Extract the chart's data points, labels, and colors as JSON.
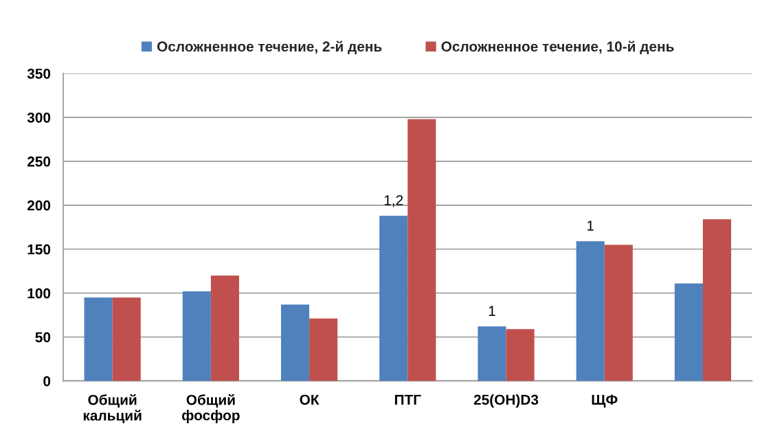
{
  "chart_data": {
    "type": "bar",
    "categories": [
      "Общий кальций",
      "Общий фосфор",
      "ОК",
      "ПТГ",
      "25(OH)D3",
      "ЩФ",
      null
    ],
    "series": [
      {
        "name": "Осложненное течение, 2-й день",
        "color": "#4f81bd",
        "values": [
          95,
          102,
          87,
          188,
          62,
          159,
          111
        ]
      },
      {
        "name": "Осложненное течение, 10-й день",
        "color": "#c0504d",
        "values": [
          95,
          120,
          71,
          298,
          59,
          155,
          184
        ]
      }
    ],
    "ylim": [
      0,
      350
    ],
    "yticks": [
      0,
      50,
      100,
      150,
      200,
      250,
      300,
      350
    ],
    "grid": "y",
    "legend": "top",
    "annotations": [
      {
        "text": "1,2",
        "x": "ПТГ",
        "y": 188
      },
      {
        "text": "1",
        "x": "25(OH)D3",
        "y": 62
      },
      {
        "text": "1",
        "x": "ЩФ",
        "y": 159
      }
    ]
  }
}
